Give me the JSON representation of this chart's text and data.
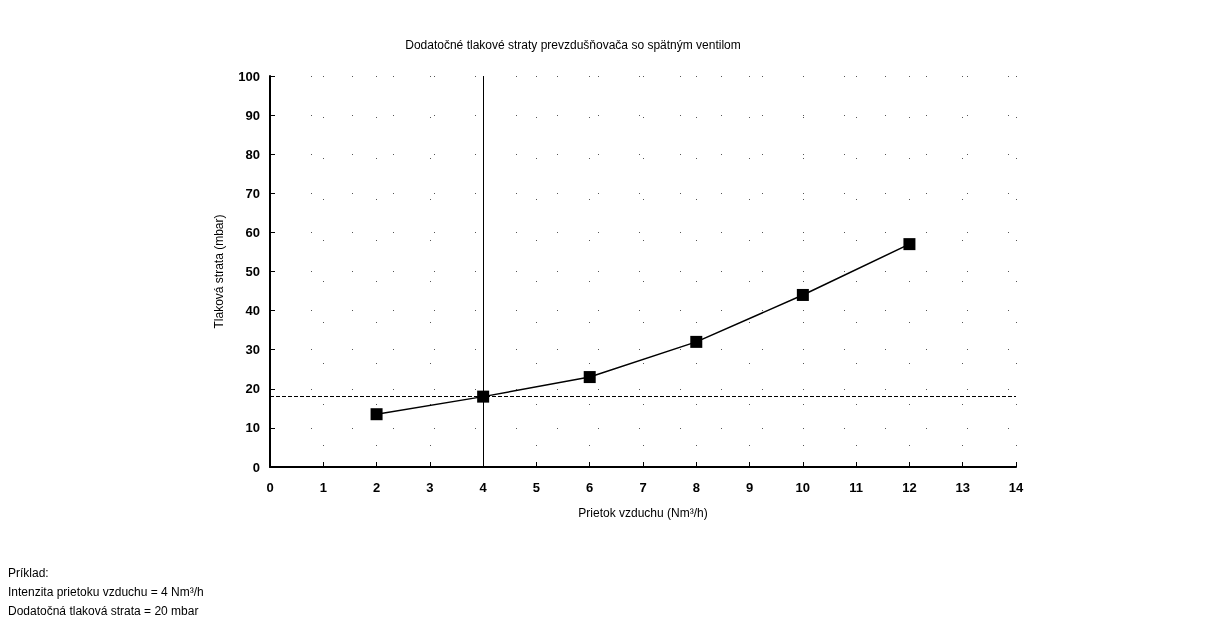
{
  "chart_data": {
    "type": "line",
    "title": "Dodatočné tlakové straty prevzdušňovača so spätným ventilom",
    "xlabel": "Prietok vzduchu (Nm³/h)",
    "ylabel": "Tlaková strata (mbar)",
    "x": [
      2,
      4,
      6,
      8,
      10,
      12
    ],
    "series": [
      {
        "color": "#000000",
        "values": [
          13.5,
          18,
          23,
          32,
          44,
          57
        ]
      }
    ],
    "xlim": [
      0,
      14
    ],
    "xticks": [
      0,
      1,
      2,
      3,
      4,
      5,
      6,
      7,
      8,
      9,
      10,
      11,
      12,
      13,
      14
    ],
    "ylim": [
      0,
      100
    ],
    "yticks": [
      0,
      10,
      20,
      30,
      40,
      50,
      60,
      70,
      80,
      90,
      100
    ],
    "grid": true,
    "marker": "square",
    "line_style": "solid",
    "ref_lines": [
      {
        "axis": "x",
        "value": 4,
        "line_style": "solid",
        "color": "#000000"
      },
      {
        "axis": "y",
        "value": 18,
        "line_style": "dashed",
        "color": "#000000"
      }
    ],
    "annotations": [
      "Príklad:",
      "Intenzita prietoku vzduchu = 4 Nm³/h",
      "Dodatočná tlaková strata = 20 mbar"
    ]
  }
}
